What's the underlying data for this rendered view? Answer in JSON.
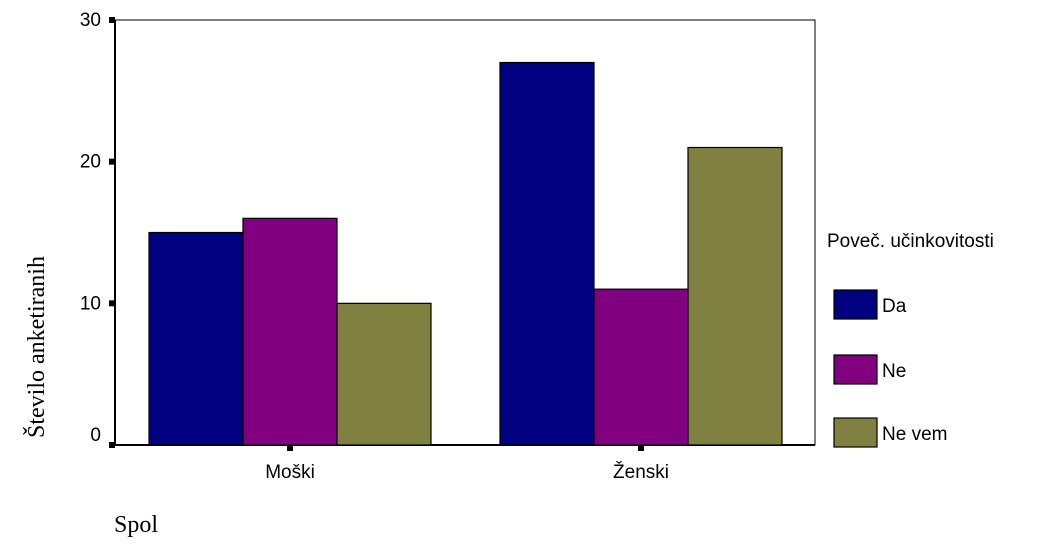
{
  "chart_data": {
    "type": "bar",
    "xlabel": "Spol",
    "ylabel": "Število anketiranih",
    "categories": [
      "Moški",
      "Ženski"
    ],
    "series": [
      {
        "name": "Da",
        "values": [
          15,
          27
        ],
        "color": "#000080"
      },
      {
        "name": "Ne",
        "values": [
          16,
          11
        ],
        "color": "#800080"
      },
      {
        "name": "Ne vem",
        "values": [
          10,
          21
        ],
        "color": "#808040"
      }
    ],
    "ylim": [
      0,
      30
    ],
    "yticks": [
      0,
      10,
      20,
      30
    ],
    "legend": {
      "title": "Poveč. učinkovitosti",
      "placement": "right"
    },
    "grid": false
  }
}
